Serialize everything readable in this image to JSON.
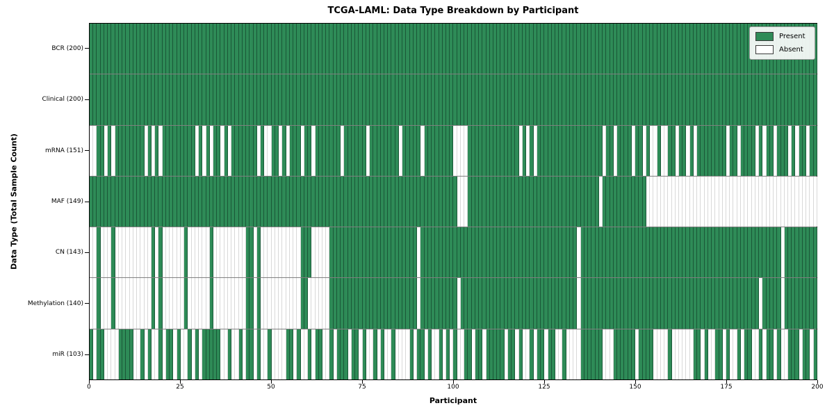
{
  "title": "TCGA-LAML: Data Type Breakdown by Participant",
  "xlabel": "Participant",
  "ylabel": "Data Type (Total Sample Count)",
  "legend": {
    "present_label": "Present",
    "absent_label": "Absent",
    "position": "upper right"
  },
  "colors": {
    "present": "#2e8b57",
    "absent": "#ffffff",
    "present_grid": "#1a5737",
    "absent_grid": "#d8d8d8",
    "border": "#000000"
  },
  "chart_data": {
    "type": "heatmap",
    "x_min": 0,
    "x_max": 200,
    "x_ticks": [
      0,
      25,
      50,
      75,
      100,
      125,
      150,
      175,
      200
    ],
    "grid": false,
    "legend_position": "upper right",
    "value_meaning": {
      "1": "Present",
      "0": "Absent"
    },
    "rows": [
      {
        "name": "BCR",
        "label": "BCR (200)",
        "total": 200,
        "presence": [
          "1111111111",
          "1111111111",
          "1111111111",
          "1111111111",
          "1111111111",
          "1111111111",
          "1111111111",
          "1111111111",
          "1111111111",
          "1111111111",
          "1111111111",
          "1111111111",
          "1111111111",
          "1111111111",
          "1111111111",
          "1111111111",
          "1111111111",
          "1111111111",
          "1111111111",
          "1111111111"
        ]
      },
      {
        "name": "Clinical",
        "label": "Clinical (200)",
        "total": 200,
        "presence": [
          "1111111111",
          "1111111111",
          "1111111111",
          "1111111111",
          "1111111111",
          "1111111111",
          "1111111111",
          "1111111111",
          "1111111111",
          "1111111111",
          "1111111111",
          "1111111111",
          "1111111111",
          "1111111111",
          "1111111111",
          "1111111111",
          "1111111111",
          "1111111111",
          "1111111111",
          "1111111111"
        ]
      },
      {
        "name": "mRNA",
        "label": "mRNA (151)",
        "total": 151,
        "presence": [
          "0011010111",
          "1111101010",
          "1111111110",
          "1010110101",
          "1111110100",
          "1101011101",
          "1011111110",
          "1111110111",
          "1111101111",
          "1011111111",
          "0000111111",
          "1111111101",
          "0101111111",
          "1111111111",
          "1011011110",
          "1101001001",
          "1011010111",
          "1111101101",
          "1110101101",
          "1101011011"
        ]
      },
      {
        "name": "MAF",
        "label": "MAF (149)",
        "total": 149,
        "presence": [
          "1111111111",
          "1111111111",
          "1111111111",
          "1111111111",
          "1111111111",
          "1111111111",
          "1111111111",
          "1111111111",
          "1111111111",
          "1111111111",
          "1000111111",
          "1111111111",
          "1111111111",
          "1111111111",
          "0111111111",
          "1110000000",
          "0000000000",
          "0000000000",
          "0000000000",
          "0000000000"
        ]
      },
      {
        "name": "CN",
        "label": "CN (143)",
        "total": 143,
        "presence": [
          "0010001000",
          "0000000101",
          "0000001000",
          "0001000000",
          "0001101000",
          "0000000011",
          "1000001111",
          "1111111111",
          "1111111111",
          "0111111111",
          "1111111111",
          "1111111111",
          "1111111111",
          "1111011111",
          "1111111111",
          "1111111111",
          "1111111111",
          "1111111111",
          "1111111111",
          "0111111111"
        ]
      },
      {
        "name": "Methylation",
        "label": "Methylation (140)",
        "total": 140,
        "presence": [
          "0010001000",
          "0000000101",
          "0000001000",
          "0001000000",
          "0001101000",
          "0000000011",
          "0000001111",
          "1111111111",
          "1111111111",
          "0111111111",
          "1011111111",
          "1111111111",
          "1111111111",
          "1111011111",
          "1111111111",
          "1111111111",
          "1111111111",
          "1111111111",
          "1111011111",
          "0111111111"
        ]
      },
      {
        "name": "miR",
        "label": "miR (103)",
        "total": 103,
        "presence": [
          "1011000011",
          "1100101001",
          "0110100101",
          "0111110010",
          "0101101001",
          "0000110100",
          "1011001011",
          "1011010010",
          "1001000010",
          "1101001010",
          "1001101101",
          "1111011010",
          "0101101100",
          "1000011111",
          "1000111111",
          "0111100001",
          "0000001101",
          "0011010010",
          "1100101101",
          "0011101101"
        ]
      }
    ]
  }
}
